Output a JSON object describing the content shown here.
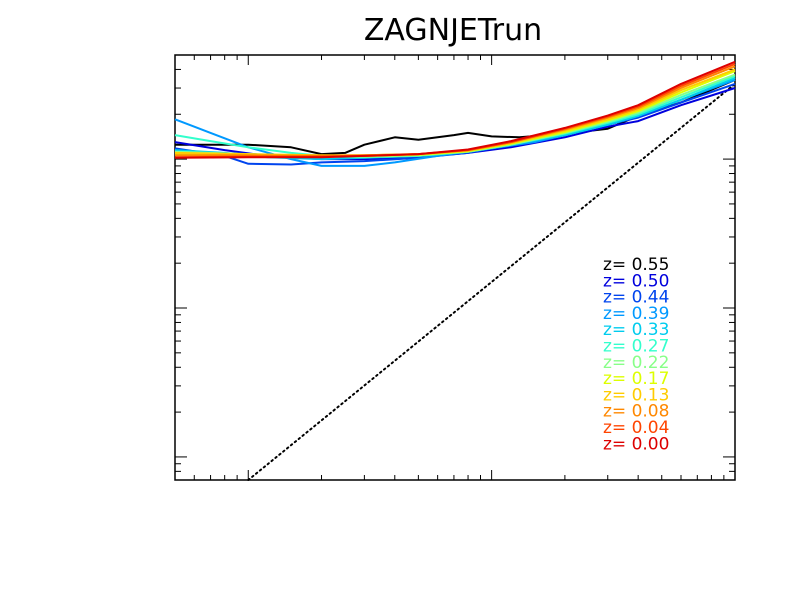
{
  "chart_data": {
    "type": "line",
    "title": "ZAGNJETrun",
    "xlabel": "",
    "ylabel": "",
    "x_scale": "log",
    "y_scale": "log",
    "xlim": [
      0.05,
      10
    ],
    "ylim": [
      0.007,
      5
    ],
    "grid": false,
    "legend_placement": "bottom-right",
    "reference_line": {
      "style": "dotted",
      "color": "#000000",
      "points": [
        [
          0.1,
          0.007
        ],
        [
          10,
          3.2
        ]
      ]
    },
    "series": [
      {
        "name": "z=  0.55",
        "color": "#000000",
        "points": [
          [
            0.05,
            1.25
          ],
          [
            0.1,
            1.25
          ],
          [
            0.15,
            1.2
          ],
          [
            0.2,
            1.08
          ],
          [
            0.25,
            1.1
          ],
          [
            0.3,
            1.25
          ],
          [
            0.4,
            1.4
          ],
          [
            0.5,
            1.35
          ],
          [
            0.7,
            1.45
          ],
          [
            0.8,
            1.5
          ],
          [
            1.0,
            1.42
          ],
          [
            1.3,
            1.4
          ],
          [
            2,
            1.48
          ],
          [
            3,
            1.6
          ],
          [
            4,
            1.95
          ],
          [
            6,
            2.4
          ],
          [
            10,
            3.4
          ]
        ]
      },
      {
        "name": "z=  0.50",
        "color": "#0000dd",
        "points": [
          [
            0.05,
            1.3
          ],
          [
            0.08,
            1.15
          ],
          [
            0.12,
            1.05
          ],
          [
            0.2,
            1.0
          ],
          [
            0.3,
            1.0
          ],
          [
            0.5,
            1.03
          ],
          [
            0.8,
            1.1
          ],
          [
            1.2,
            1.2
          ],
          [
            2,
            1.4
          ],
          [
            3,
            1.65
          ],
          [
            4,
            1.8
          ],
          [
            6,
            2.3
          ],
          [
            10,
            3.0
          ]
        ]
      },
      {
        "name": "z=  0.44",
        "color": "#0044ee",
        "points": [
          [
            0.05,
            1.18
          ],
          [
            0.08,
            1.05
          ],
          [
            0.1,
            0.93
          ],
          [
            0.15,
            0.92
          ],
          [
            0.2,
            0.95
          ],
          [
            0.3,
            0.97
          ],
          [
            0.5,
            1.02
          ],
          [
            0.8,
            1.1
          ],
          [
            1.2,
            1.25
          ],
          [
            2,
            1.45
          ],
          [
            3,
            1.7
          ],
          [
            4,
            1.9
          ],
          [
            6,
            2.4
          ],
          [
            10,
            3.2
          ]
        ]
      },
      {
        "name": "z=  0.39",
        "color": "#0099ff",
        "points": [
          [
            0.05,
            1.85
          ],
          [
            0.07,
            1.5
          ],
          [
            0.1,
            1.2
          ],
          [
            0.15,
            1.0
          ],
          [
            0.2,
            0.9
          ],
          [
            0.3,
            0.9
          ],
          [
            0.4,
            0.95
          ],
          [
            0.6,
            1.05
          ],
          [
            1.0,
            1.18
          ],
          [
            1.5,
            1.3
          ],
          [
            2,
            1.45
          ],
          [
            3,
            1.7
          ],
          [
            4,
            1.95
          ],
          [
            6,
            2.5
          ],
          [
            10,
            3.4
          ]
        ]
      },
      {
        "name": "z=  0.33",
        "color": "#00ccee",
        "points": [
          [
            0.05,
            1.15
          ],
          [
            0.08,
            1.1
          ],
          [
            0.12,
            1.03
          ],
          [
            0.2,
            1.0
          ],
          [
            0.3,
            1.02
          ],
          [
            0.5,
            1.05
          ],
          [
            0.8,
            1.12
          ],
          [
            1.2,
            1.25
          ],
          [
            2,
            1.45
          ],
          [
            3,
            1.7
          ],
          [
            4,
            1.95
          ],
          [
            6,
            2.5
          ],
          [
            10,
            3.5
          ]
        ]
      },
      {
        "name": "z=  0.27",
        "color": "#33ffcc",
        "points": [
          [
            0.05,
            1.45
          ],
          [
            0.07,
            1.32
          ],
          [
            0.1,
            1.2
          ],
          [
            0.15,
            1.1
          ],
          [
            0.2,
            1.05
          ],
          [
            0.3,
            1.03
          ],
          [
            0.5,
            1.05
          ],
          [
            0.8,
            1.12
          ],
          [
            1.2,
            1.25
          ],
          [
            2,
            1.48
          ],
          [
            3,
            1.75
          ],
          [
            4,
            2.0
          ],
          [
            6,
            2.6
          ],
          [
            10,
            3.6
          ]
        ]
      },
      {
        "name": "z=  0.22",
        "color": "#88ff88",
        "points": [
          [
            0.05,
            1.12
          ],
          [
            0.1,
            1.08
          ],
          [
            0.2,
            1.05
          ],
          [
            0.3,
            1.04
          ],
          [
            0.5,
            1.06
          ],
          [
            0.8,
            1.12
          ],
          [
            1.2,
            1.25
          ],
          [
            2,
            1.5
          ],
          [
            3,
            1.78
          ],
          [
            4,
            2.05
          ],
          [
            6,
            2.7
          ],
          [
            10,
            3.7
          ]
        ]
      },
      {
        "name": "z=  0.17",
        "color": "#ddff00",
        "points": [
          [
            0.05,
            1.08
          ],
          [
            0.1,
            1.07
          ],
          [
            0.2,
            1.05
          ],
          [
            0.3,
            1.05
          ],
          [
            0.5,
            1.07
          ],
          [
            0.8,
            1.13
          ],
          [
            1.2,
            1.27
          ],
          [
            2,
            1.52
          ],
          [
            3,
            1.82
          ],
          [
            4,
            2.1
          ],
          [
            6,
            2.8
          ],
          [
            10,
            3.9
          ]
        ]
      },
      {
        "name": "z=  0.13",
        "color": "#ffcc00",
        "points": [
          [
            0.05,
            1.1
          ],
          [
            0.1,
            1.08
          ],
          [
            0.2,
            1.06
          ],
          [
            0.3,
            1.06
          ],
          [
            0.5,
            1.08
          ],
          [
            0.8,
            1.14
          ],
          [
            1.2,
            1.28
          ],
          [
            2,
            1.55
          ],
          [
            3,
            1.85
          ],
          [
            4,
            2.15
          ],
          [
            6,
            2.9
          ],
          [
            10,
            4.0
          ]
        ]
      },
      {
        "name": "z=  0.08",
        "color": "#ff8800",
        "points": [
          [
            0.05,
            1.06
          ],
          [
            0.1,
            1.06
          ],
          [
            0.2,
            1.05
          ],
          [
            0.3,
            1.06
          ],
          [
            0.5,
            1.08
          ],
          [
            0.8,
            1.15
          ],
          [
            1.2,
            1.3
          ],
          [
            2,
            1.58
          ],
          [
            3,
            1.9
          ],
          [
            4,
            2.2
          ],
          [
            6,
            3.0
          ],
          [
            10,
            4.2
          ]
        ]
      },
      {
        "name": "z=  0.04",
        "color": "#ff4400",
        "points": [
          [
            0.05,
            1.03
          ],
          [
            0.1,
            1.04
          ],
          [
            0.2,
            1.04
          ],
          [
            0.3,
            1.05
          ],
          [
            0.5,
            1.08
          ],
          [
            0.8,
            1.15
          ],
          [
            1.2,
            1.3
          ],
          [
            2,
            1.6
          ],
          [
            3,
            1.93
          ],
          [
            4,
            2.25
          ],
          [
            6,
            3.1
          ],
          [
            10,
            4.35
          ]
        ]
      },
      {
        "name": "z=  0.00",
        "color": "#dd0000",
        "points": [
          [
            0.05,
            1.02
          ],
          [
            0.1,
            1.03
          ],
          [
            0.2,
            1.03
          ],
          [
            0.3,
            1.05
          ],
          [
            0.5,
            1.08
          ],
          [
            0.8,
            1.16
          ],
          [
            1.2,
            1.32
          ],
          [
            2,
            1.62
          ],
          [
            3,
            1.96
          ],
          [
            4,
            2.3
          ],
          [
            6,
            3.2
          ],
          [
            10,
            4.5
          ]
        ]
      }
    ]
  }
}
